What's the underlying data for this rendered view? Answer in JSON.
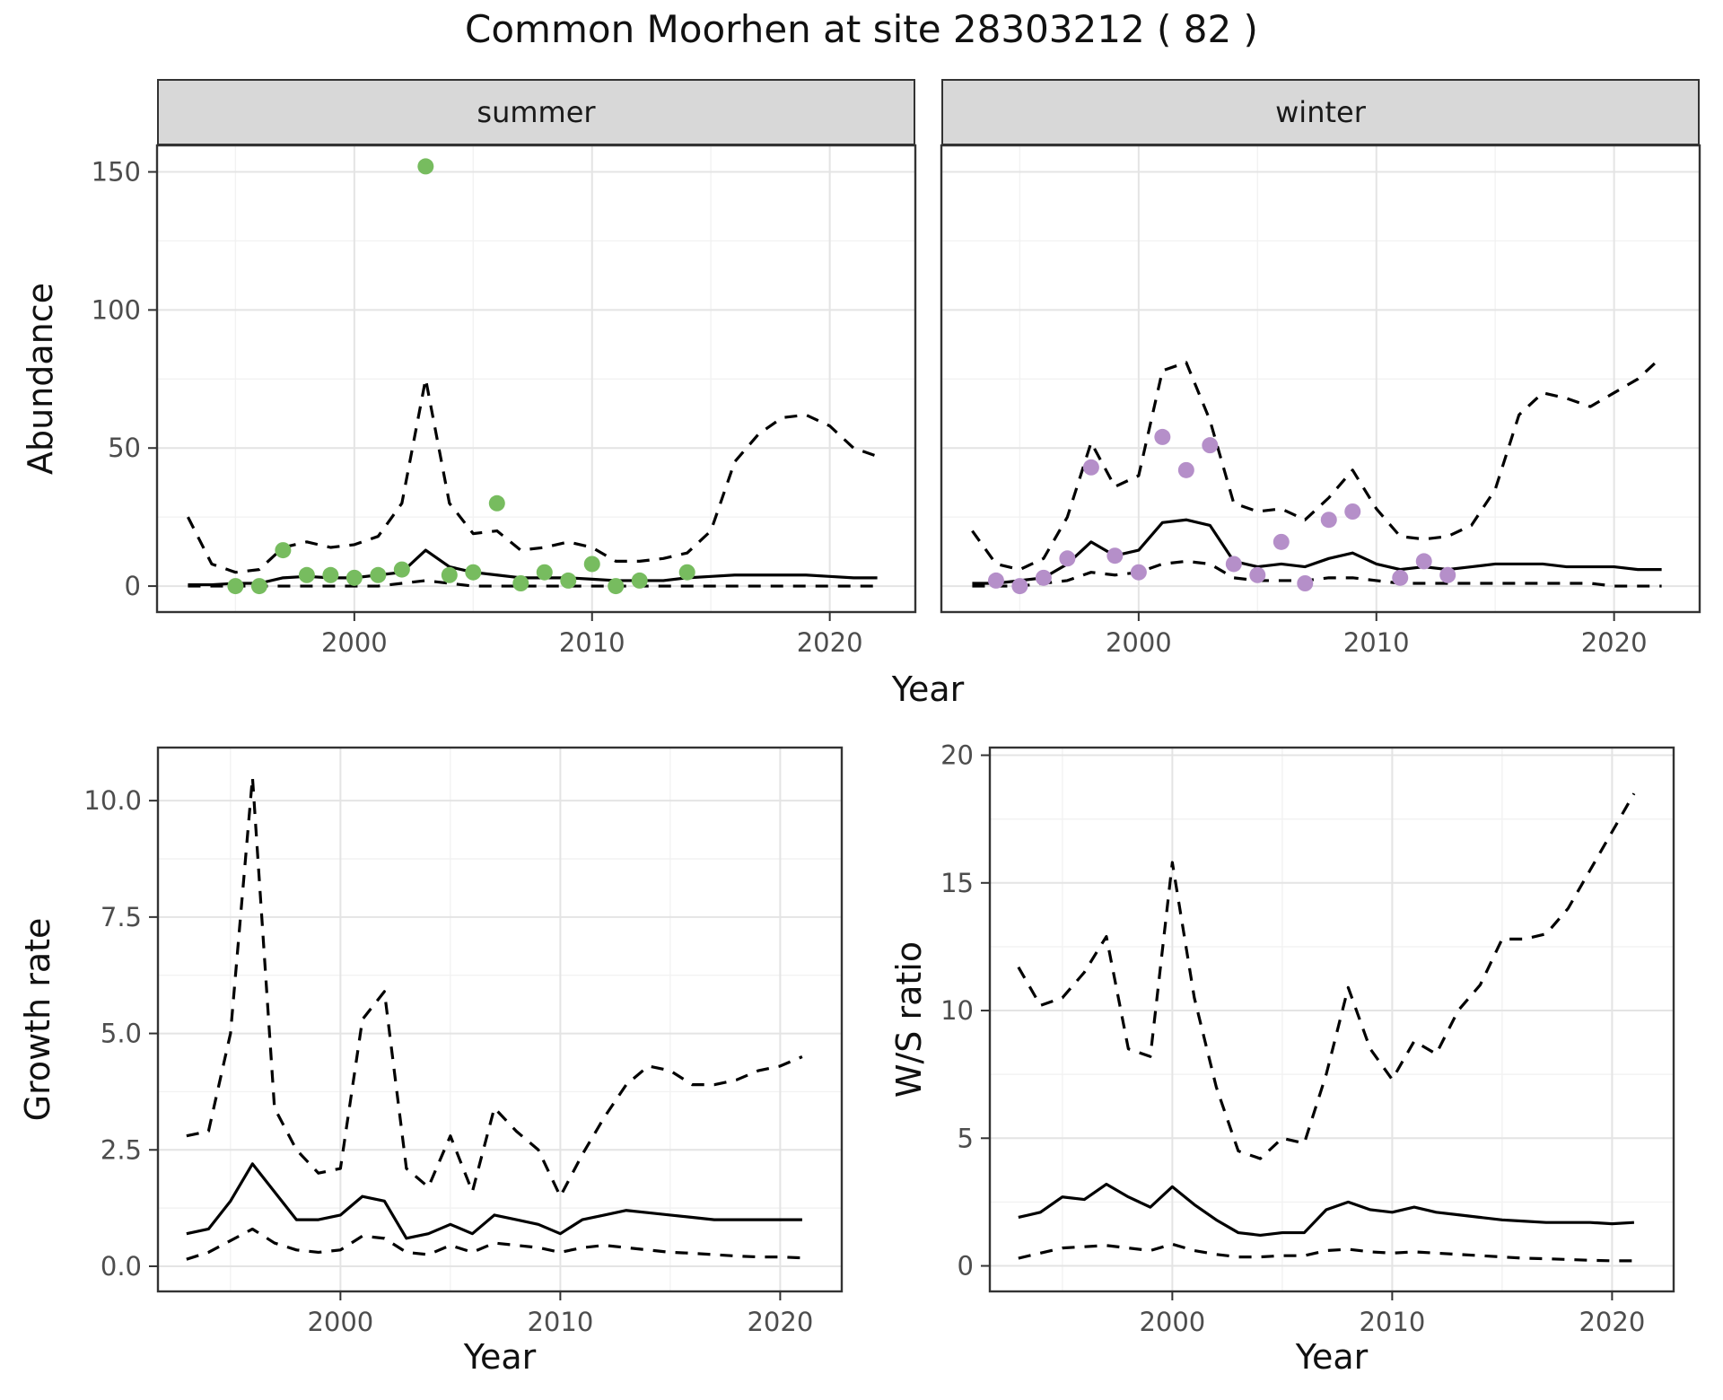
{
  "title": "Common Moorhen at site 28303212 ( 82 )",
  "colors": {
    "page_bg": "#FFFFFF",
    "panel_bg": "#FFFFFF",
    "grid_major": "#E4E4E4",
    "grid_minor": "#F2F2F2",
    "panel_border": "#333333",
    "strip_bg": "#D8D8D8",
    "tick_label": "#4D4D4D",
    "line": "#000000",
    "summer_point": "#77BC5F",
    "winter_point": "#B58FC9"
  },
  "chart_data": [
    {
      "type": "line",
      "panel": "abundance-summer",
      "facet_label": "summer",
      "xlabel": "Year",
      "ylabel": "Abundance",
      "xlim": [
        1991.7,
        2023.6
      ],
      "ylim": [
        -9.4,
        159.6
      ],
      "x_ticks": [
        2000,
        2010,
        2020
      ],
      "x_tick_labels": [
        "2000",
        "2010",
        "2020"
      ],
      "y_ticks": [
        0,
        50,
        100,
        150
      ],
      "y_tick_labels": [
        "0",
        "50",
        "100",
        "150"
      ],
      "show_y_axis": true,
      "grid": true,
      "legend": "none",
      "years": [
        1993,
        1994,
        1995,
        1996,
        1997,
        1998,
        1999,
        2000,
        2001,
        2002,
        2003,
        2004,
        2005,
        2006,
        2007,
        2008,
        2009,
        2010,
        2011,
        2012,
        2013,
        2014,
        2015,
        2016,
        2017,
        2018,
        2019,
        2020,
        2021,
        2022
      ],
      "series": [
        {
          "name": "upper_95ci",
          "style": "dashed",
          "values": [
            25,
            8,
            5,
            6,
            14,
            16,
            14,
            15,
            18,
            30,
            75,
            30,
            19,
            20,
            13,
            14,
            16,
            14,
            9,
            9,
            10,
            12,
            20,
            45,
            55,
            61,
            62,
            58,
            50,
            47
          ]
        },
        {
          "name": "lower_95ci",
          "style": "dashed",
          "values": [
            0,
            0,
            0,
            0,
            0,
            0,
            0,
            0,
            0,
            1,
            2,
            1,
            0,
            0,
            0,
            0,
            0,
            0,
            0,
            0,
            0,
            0,
            0,
            0,
            0,
            0,
            0,
            0,
            0,
            0
          ]
        },
        {
          "name": "median",
          "style": "solid",
          "values": [
            0.5,
            0.5,
            1,
            1,
            3,
            3.5,
            3,
            3,
            4,
            5,
            13,
            7,
            5,
            4,
            3,
            3,
            3,
            2.5,
            2,
            2,
            2,
            3,
            3.5,
            4,
            4,
            4,
            4,
            3.5,
            3,
            3
          ]
        }
      ],
      "points": {
        "name": "observed_counts",
        "color": "#77BC5F",
        "x": [
          1995,
          1996,
          1997,
          1998,
          1999,
          2000,
          2001,
          2002,
          2003,
          2004,
          2005,
          2006,
          2007,
          2008,
          2009,
          2010,
          2011,
          2012,
          2014
        ],
        "y": [
          0,
          0,
          13,
          4,
          4,
          3,
          4,
          6,
          152,
          4,
          5,
          30,
          1,
          5,
          2,
          8,
          0,
          2,
          5
        ]
      }
    },
    {
      "type": "line",
      "panel": "abundance-winter",
      "facet_label": "winter",
      "xlabel": "Year",
      "ylabel": "Abundance",
      "xlim": [
        1991.7,
        2023.6
      ],
      "ylim": [
        -9.4,
        159.6
      ],
      "x_ticks": [
        2000,
        2010,
        2020
      ],
      "x_tick_labels": [
        "2000",
        "2010",
        "2020"
      ],
      "y_ticks": [
        0,
        50,
        100,
        150
      ],
      "y_tick_labels": null,
      "show_y_axis": false,
      "grid": true,
      "legend": "none",
      "years": [
        1993,
        1994,
        1995,
        1996,
        1997,
        1998,
        1999,
        2000,
        2001,
        2002,
        2003,
        2004,
        2005,
        2006,
        2007,
        2008,
        2009,
        2010,
        2011,
        2012,
        2013,
        2014,
        2015,
        2016,
        2017,
        2018,
        2019,
        2020,
        2021,
        2022
      ],
      "series": [
        {
          "name": "upper_95ci",
          "style": "dashed",
          "values": [
            20,
            8,
            6,
            10,
            25,
            52,
            36,
            40,
            78,
            81,
            60,
            30,
            27,
            28,
            24,
            32,
            42,
            28,
            18,
            17,
            18,
            22,
            35,
            62,
            70,
            68,
            65,
            70,
            75,
            83
          ]
        },
        {
          "name": "lower_95ci",
          "style": "dashed",
          "values": [
            0,
            0,
            0,
            1,
            2,
            5,
            4,
            5,
            8,
            9,
            8,
            3,
            2,
            2,
            2,
            3,
            3,
            2,
            1,
            1,
            1,
            1,
            1,
            1,
            1,
            1,
            1,
            0,
            0,
            0
          ]
        },
        {
          "name": "median",
          "style": "solid",
          "values": [
            1,
            1,
            2,
            3,
            8,
            16,
            11,
            13,
            23,
            24,
            22,
            9,
            7,
            8,
            7,
            10,
            12,
            8,
            6,
            7,
            6,
            7,
            8,
            8,
            8,
            7,
            7,
            7,
            6,
            6
          ]
        }
      ],
      "points": {
        "name": "observed_counts",
        "color": "#B58FC9",
        "x": [
          1994,
          1995,
          1996,
          1997,
          1998,
          1999,
          2000,
          2001,
          2002,
          2003,
          2004,
          2005,
          2006,
          2007,
          2008,
          2009,
          2011,
          2012,
          2013
        ],
        "y": [
          2,
          0,
          3,
          10,
          43,
          11,
          5,
          54,
          42,
          51,
          8,
          4,
          16,
          1,
          24,
          27,
          3,
          9,
          4
        ]
      }
    },
    {
      "type": "line",
      "panel": "growth-rate",
      "facet_label": null,
      "xlabel": "Year",
      "ylabel": "Growth rate",
      "xlim": [
        1991.7,
        2022.8
      ],
      "ylim": [
        -0.54,
        11.14
      ],
      "x_ticks": [
        2000,
        2010,
        2020
      ],
      "x_tick_labels": [
        "2000",
        "2010",
        "2020"
      ],
      "y_ticks": [
        0,
        2.5,
        5,
        7.5,
        10
      ],
      "y_tick_labels": [
        "0.0",
        "2.5",
        "5.0",
        "7.5",
        "10.0"
      ],
      "show_y_axis": true,
      "grid": true,
      "legend": "none",
      "years": [
        1993,
        1994,
        1995,
        1996,
        1997,
        1998,
        1999,
        2000,
        2001,
        2002,
        2003,
        2004,
        2005,
        2006,
        2007,
        2008,
        2009,
        2010,
        2011,
        2012,
        2013,
        2014,
        2015,
        2016,
        2017,
        2018,
        2019,
        2020,
        2021
      ],
      "series": [
        {
          "name": "upper_95ci",
          "style": "dashed",
          "values": [
            2.8,
            2.9,
            5.0,
            10.5,
            3.4,
            2.5,
            2.0,
            2.1,
            5.3,
            5.9,
            2.1,
            1.7,
            2.8,
            1.6,
            3.4,
            2.9,
            2.5,
            1.5,
            2.4,
            3.2,
            3.9,
            4.3,
            4.2,
            3.9,
            3.9,
            4.0,
            4.2,
            4.3,
            4.5
          ]
        },
        {
          "name": "lower_95ci",
          "style": "dashed",
          "values": [
            0.15,
            0.3,
            0.55,
            0.8,
            0.5,
            0.35,
            0.3,
            0.35,
            0.65,
            0.6,
            0.3,
            0.25,
            0.45,
            0.3,
            0.5,
            0.45,
            0.4,
            0.3,
            0.4,
            0.45,
            0.4,
            0.35,
            0.3,
            0.28,
            0.25,
            0.22,
            0.2,
            0.2,
            0.18
          ]
        },
        {
          "name": "median",
          "style": "solid",
          "values": [
            0.7,
            0.8,
            1.4,
            2.2,
            1.6,
            1.0,
            1.0,
            1.1,
            1.5,
            1.4,
            0.6,
            0.7,
            0.9,
            0.7,
            1.1,
            1.0,
            0.9,
            0.7,
            1.0,
            1.1,
            1.2,
            1.15,
            1.1,
            1.05,
            1.0,
            1.0,
            1.0,
            1.0,
            1.0
          ]
        }
      ],
      "points": null
    },
    {
      "type": "line",
      "panel": "ws-ratio",
      "facet_label": null,
      "xlabel": "Year",
      "ylabel": "W/S ratio",
      "xlim": [
        1991.7,
        2022.8
      ],
      "ylim": [
        -1.0,
        20.3
      ],
      "x_ticks": [
        2000,
        2010,
        2020
      ],
      "x_tick_labels": [
        "2000",
        "2010",
        "2020"
      ],
      "y_ticks": [
        0,
        5,
        10,
        15,
        20
      ],
      "y_tick_labels": [
        "0",
        "5",
        "10",
        "15",
        "20"
      ],
      "show_y_axis": true,
      "grid": true,
      "legend": "none",
      "years": [
        1993,
        1994,
        1995,
        1996,
        1997,
        1998,
        1999,
        2000,
        2001,
        2002,
        2003,
        2004,
        2005,
        2006,
        2007,
        2008,
        2009,
        2010,
        2011,
        2012,
        2013,
        2014,
        2015,
        2016,
        2017,
        2018,
        2019,
        2020,
        2021
      ],
      "series": [
        {
          "name": "upper_95ci",
          "style": "dashed",
          "values": [
            11.7,
            10.2,
            10.5,
            11.5,
            12.9,
            8.5,
            8.2,
            15.8,
            10.5,
            7.0,
            4.5,
            4.2,
            5.0,
            4.8,
            7.5,
            10.9,
            8.5,
            7.3,
            8.8,
            8.3,
            10.0,
            11.0,
            12.8,
            12.8,
            13.0,
            14.0,
            15.5,
            17.0,
            18.5
          ]
        },
        {
          "name": "lower_95ci",
          "style": "dashed",
          "values": [
            0.3,
            0.5,
            0.7,
            0.75,
            0.8,
            0.7,
            0.6,
            0.85,
            0.6,
            0.45,
            0.35,
            0.35,
            0.4,
            0.4,
            0.6,
            0.65,
            0.55,
            0.5,
            0.55,
            0.5,
            0.45,
            0.4,
            0.35,
            0.3,
            0.28,
            0.25,
            0.22,
            0.2,
            0.2
          ]
        },
        {
          "name": "median",
          "style": "solid",
          "values": [
            1.9,
            2.1,
            2.7,
            2.6,
            3.2,
            2.7,
            2.3,
            3.1,
            2.4,
            1.8,
            1.3,
            1.2,
            1.3,
            1.3,
            2.2,
            2.5,
            2.2,
            2.1,
            2.3,
            2.1,
            2.0,
            1.9,
            1.8,
            1.75,
            1.7,
            1.7,
            1.7,
            1.65,
            1.7
          ]
        }
      ],
      "points": null
    }
  ]
}
